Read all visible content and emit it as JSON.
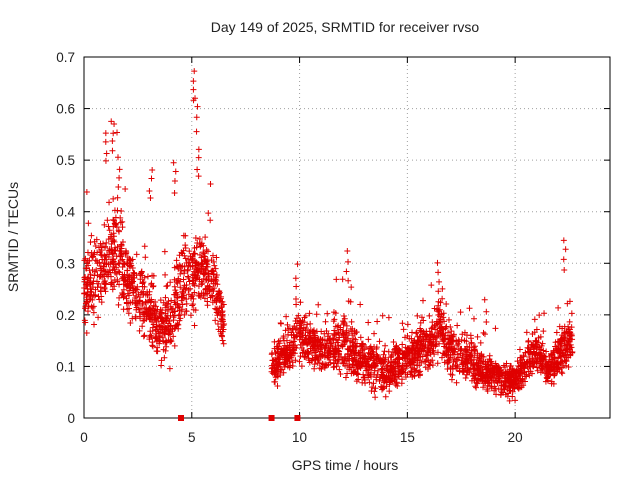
{
  "chart_data": {
    "type": "scatter",
    "title": "Day 149 of 2025, SRMTID for receiver rvso",
    "xlabel": "GPS time / hours",
    "ylabel": "SRMTID / TECUs",
    "xlim": [
      0,
      24.4
    ],
    "ylim": [
      0,
      0.7
    ],
    "xticks": [
      0,
      5,
      10,
      15,
      20
    ],
    "xtick_labels": [
      "0",
      "5",
      "10",
      "15",
      "20"
    ],
    "yticks": [
      0,
      0.1,
      0.2,
      0.3,
      0.4,
      0.5,
      0.6,
      0.7
    ],
    "ytick_labels": [
      "0",
      "0.1",
      "0.2",
      "0.3",
      "0.4",
      "0.5",
      "0.6",
      "0.7"
    ],
    "grid": true,
    "marker": "+",
    "color": "#e00000",
    "series": [
      {
        "name": "SRMTID",
        "description_profile": "piecewise envelope of dense scatter (hours -> median TECU, spread TECU)",
        "segments": [
          {
            "x_start": 0.0,
            "x_end": 6.5,
            "profile": [
              [
                0.0,
                0.25,
                0.06
              ],
              [
                0.5,
                0.27,
                0.07
              ],
              [
                1.0,
                0.3,
                0.08
              ],
              [
                1.5,
                0.33,
                0.09
              ],
              [
                2.0,
                0.27,
                0.06
              ],
              [
                2.5,
                0.24,
                0.06
              ],
              [
                3.0,
                0.22,
                0.06
              ],
              [
                3.5,
                0.17,
                0.06
              ],
              [
                4.0,
                0.18,
                0.06
              ],
              [
                4.5,
                0.26,
                0.08
              ],
              [
                5.0,
                0.27,
                0.08
              ],
              [
                5.5,
                0.3,
                0.06
              ],
              [
                6.0,
                0.27,
                0.06
              ],
              [
                6.5,
                0.17,
                0.04
              ]
            ]
          },
          {
            "x_start": 8.7,
            "x_end": 22.7,
            "profile": [
              [
                8.7,
                0.1,
                0.03
              ],
              [
                9.5,
                0.13,
                0.04
              ],
              [
                10.0,
                0.16,
                0.05
              ],
              [
                11.0,
                0.13,
                0.04
              ],
              [
                12.0,
                0.14,
                0.05
              ],
              [
                13.0,
                0.11,
                0.04
              ],
              [
                14.0,
                0.09,
                0.04
              ],
              [
                15.0,
                0.12,
                0.04
              ],
              [
                16.0,
                0.14,
                0.05
              ],
              [
                16.5,
                0.17,
                0.05
              ],
              [
                17.0,
                0.13,
                0.04
              ],
              [
                18.0,
                0.11,
                0.04
              ],
              [
                19.0,
                0.08,
                0.03
              ],
              [
                20.0,
                0.07,
                0.03
              ],
              [
                21.0,
                0.14,
                0.04
              ],
              [
                21.5,
                0.09,
                0.03
              ],
              [
                22.0,
                0.12,
                0.04
              ],
              [
                22.7,
                0.16,
                0.04
              ]
            ]
          }
        ],
        "peaks": [
          [
            1.0,
            0.56
          ],
          [
            1.3,
            0.58
          ],
          [
            1.6,
            0.51
          ],
          [
            3.1,
            0.49
          ],
          [
            4.2,
            0.5
          ],
          [
            5.1,
            0.68
          ],
          [
            5.2,
            0.625
          ],
          [
            5.3,
            0.53
          ],
          [
            9.9,
            0.3
          ],
          [
            12.2,
            0.33
          ],
          [
            16.4,
            0.31
          ],
          [
            18.6,
            0.23
          ],
          [
            22.3,
            0.35
          ]
        ],
        "gap_markers_x": [
          4.5,
          8.7,
          9.9
        ]
      }
    ]
  }
}
